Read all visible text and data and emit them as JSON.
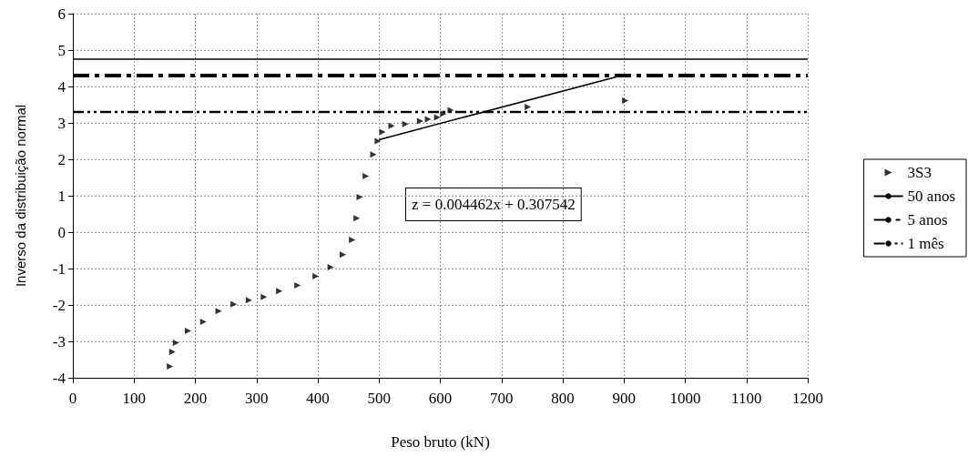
{
  "chart_data": {
    "type": "scatter",
    "xlabel": "Peso bruto (kN)",
    "ylabel": "Inverso da distribuição normal",
    "xlim": [
      0,
      1200
    ],
    "xticks": [
      0,
      100,
      200,
      300,
      400,
      500,
      600,
      700,
      800,
      900,
      1000,
      1100,
      1200
    ],
    "ylim": [
      -4,
      6
    ],
    "yticks": [
      -4,
      -3,
      -2,
      -1,
      0,
      1,
      2,
      3,
      4,
      5,
      6
    ],
    "grid": true,
    "legend": "right",
    "marker": "triangle",
    "annotations": [
      "z = 0.004462x + 0.307542"
    ],
    "series": [
      {
        "name": "3S3",
        "color": "#000000",
        "x": [
          158.6,
          162.5,
          168.5,
          188,
          213,
          238,
          262.7,
          287.5,
          312,
          337,
          366.8,
          396.5,
          421,
          441,
          456,
          463.5,
          468.4,
          478.3,
          490.7,
          498,
          505.6,
          520.4,
          543,
          567,
          580,
          595,
          605,
          617,
          743,
          902
        ],
        "values": [
          -3.69,
          -3.29,
          -3.04,
          -2.71,
          -2.46,
          -2.17,
          -1.98,
          -1.87,
          -1.78,
          -1.62,
          -1.46,
          -1.21,
          -0.96,
          -0.62,
          -0.21,
          0.38,
          0.96,
          1.54,
          2.13,
          2.5,
          2.75,
          2.92,
          2.97,
          3.05,
          3.1,
          3.15,
          3.25,
          3.35,
          3.44,
          3.61
        ]
      },
      {
        "type": "line",
        "color": "#000000",
        "x": [
          500,
          900
        ],
        "values": [
          2.54,
          4.32
        ],
        "line_style": "solid",
        "marker": "none"
      }
    ],
    "ref_lines": [
      {
        "axis": "y",
        "value": 4.75,
        "label": "50 anos",
        "color": "#000000",
        "line_style": "solid"
      },
      {
        "axis": "y",
        "value": 4.3,
        "label": "5 anos",
        "color": "#000000",
        "line_style": "dashed"
      },
      {
        "axis": "y",
        "value": 3.3,
        "label": "1 mês",
        "color": "#000000",
        "line_style": "dotted"
      }
    ]
  }
}
